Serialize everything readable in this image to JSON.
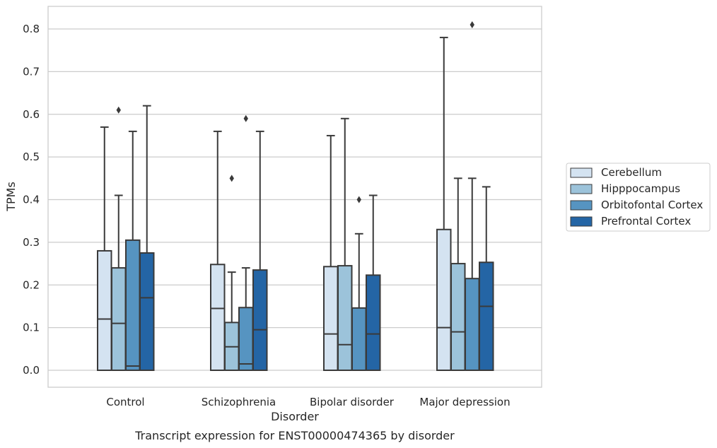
{
  "chart_data": {
    "type": "box",
    "xlabel": "Disorder",
    "ylabel": "TPMs",
    "caption": "Transcript expression for ENST00000474365 by disorder",
    "ylim": [
      -0.04,
      0.85
    ],
    "yticks": [
      0.0,
      0.1,
      0.2,
      0.3,
      0.4,
      0.5,
      0.6,
      0.7,
      0.8
    ],
    "ytick_labels": [
      "0.0",
      "0.1",
      "0.2",
      "0.3",
      "0.4",
      "0.5",
      "0.6",
      "0.7",
      "0.8"
    ],
    "grid": "horizontal",
    "legend_position": "right",
    "categories": [
      "Control",
      "Schizophrenia",
      "Bipolar disorder",
      "Major depression"
    ],
    "series": [
      {
        "name": "Cerebellum",
        "color": "#d4e3f1",
        "boxes": [
          {
            "whislo": 0.0,
            "q1": 0.0,
            "med": 0.12,
            "q3": 0.28,
            "whishi": 0.57,
            "fliers": []
          },
          {
            "whislo": 0.0,
            "q1": 0.0,
            "med": 0.145,
            "q3": 0.248,
            "whishi": 0.56,
            "fliers": []
          },
          {
            "whislo": 0.0,
            "q1": 0.0,
            "med": 0.085,
            "q3": 0.243,
            "whishi": 0.55,
            "fliers": []
          },
          {
            "whislo": 0.0,
            "q1": 0.0,
            "med": 0.1,
            "q3": 0.33,
            "whishi": 0.78,
            "fliers": []
          }
        ]
      },
      {
        "name": "Hipppocampus",
        "color": "#9cc3da",
        "boxes": [
          {
            "whislo": 0.0,
            "q1": 0.0,
            "med": 0.11,
            "q3": 0.24,
            "whishi": 0.41,
            "fliers": [
              0.61
            ]
          },
          {
            "whislo": 0.0,
            "q1": 0.0,
            "med": 0.055,
            "q3": 0.112,
            "whishi": 0.23,
            "fliers": [
              0.45
            ]
          },
          {
            "whislo": 0.0,
            "q1": 0.0,
            "med": 0.06,
            "q3": 0.245,
            "whishi": 0.59,
            "fliers": []
          },
          {
            "whislo": 0.0,
            "q1": 0.0,
            "med": 0.09,
            "q3": 0.25,
            "whishi": 0.45,
            "fliers": []
          }
        ]
      },
      {
        "name": "Orbitofontal Cortex",
        "color": "#5694c1",
        "boxes": [
          {
            "whislo": 0.0,
            "q1": 0.0,
            "med": 0.01,
            "q3": 0.305,
            "whishi": 0.56,
            "fliers": []
          },
          {
            "whislo": 0.0,
            "q1": 0.0,
            "med": 0.015,
            "q3": 0.147,
            "whishi": 0.24,
            "fliers": [
              0.59
            ]
          },
          {
            "whislo": 0.0,
            "q1": 0.0,
            "med": 0.0,
            "q3": 0.146,
            "whishi": 0.32,
            "fliers": [
              0.4
            ]
          },
          {
            "whislo": 0.0,
            "q1": 0.0,
            "med": 0.0,
            "q3": 0.215,
            "whishi": 0.45,
            "fliers": [
              0.81
            ]
          }
        ]
      },
      {
        "name": "Prefrontal Cortex",
        "color": "#2465a5",
        "boxes": [
          {
            "whislo": 0.0,
            "q1": 0.0,
            "med": 0.17,
            "q3": 0.275,
            "whishi": 0.62,
            "fliers": []
          },
          {
            "whislo": 0.0,
            "q1": 0.0,
            "med": 0.095,
            "q3": 0.235,
            "whishi": 0.56,
            "fliers": []
          },
          {
            "whislo": 0.0,
            "q1": 0.0,
            "med": 0.085,
            "q3": 0.223,
            "whishi": 0.41,
            "fliers": []
          },
          {
            "whislo": 0.0,
            "q1": 0.0,
            "med": 0.15,
            "q3": 0.253,
            "whishi": 0.43,
            "fliers": []
          }
        ]
      }
    ]
  }
}
